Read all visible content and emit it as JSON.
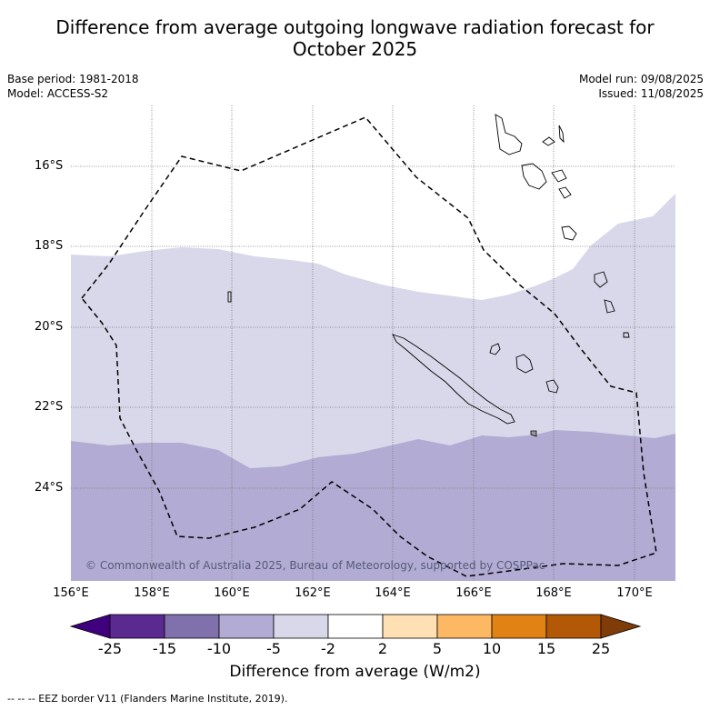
{
  "title_line1": "Difference from average outgoing longwave radiation forecast for",
  "title_line2": "October 2025",
  "base_period": "Base period: 1981-2018",
  "model": "Model: ACCESS-S2",
  "model_run": "Model run: 09/08/2025",
  "issued": "Issued: 11/08/2025",
  "copyright": "© Commonwealth of Australia 2025, Bureau of Meteorology, supported by COSPPac",
  "lat_labels": [
    "16°S",
    "18°S",
    "20°S",
    "22°S",
    "24°S"
  ],
  "lon_labels": [
    "156°E",
    "158°E",
    "160°E",
    "162°E",
    "164°E",
    "166°E",
    "168°E",
    "170°E"
  ],
  "colorbar": {
    "title": "Difference from average (W/m2)",
    "ticks": [
      "-25",
      "-15",
      "-10",
      "-5",
      "-2",
      "2",
      "5",
      "10",
      "15",
      "25"
    ],
    "colors": [
      "#3f007d",
      "#5b2a91",
      "#8071ad",
      "#b2abd3",
      "#d8d8ea",
      "#ffffff",
      "#fee0b4",
      "#fdb863",
      "#e08214",
      "#b35806",
      "#7f3b08"
    ]
  },
  "footnote": "--  --  -- EEZ border V11 (Flanders Marine Institute, 2019)."
}
